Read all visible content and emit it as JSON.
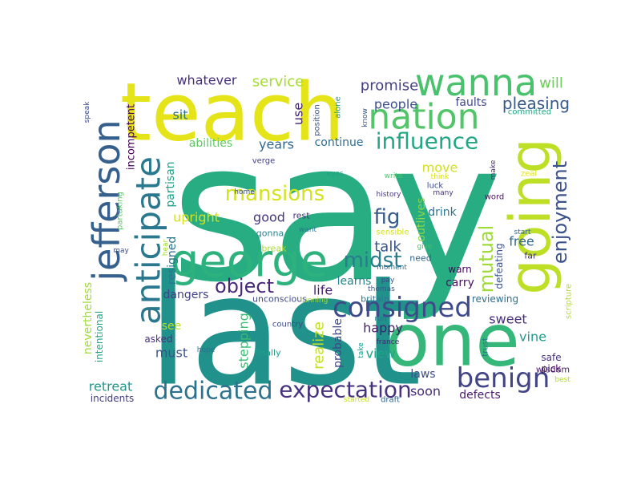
{
  "words": [
    {
      "text": "say",
      "color": "#27ad81"
    },
    {
      "text": "last",
      "color": "#21918c"
    },
    {
      "text": "teach",
      "color": "#e5e419"
    },
    {
      "text": "one",
      "color": "#35b779"
    },
    {
      "text": "going",
      "color": "#bddf26"
    },
    {
      "text": "george",
      "color": "#2db27d"
    },
    {
      "text": "jefferson",
      "color": "#355f8d"
    },
    {
      "text": "anticipate",
      "color": "#2a788e"
    },
    {
      "text": "wanna",
      "color": "#4ac16d"
    },
    {
      "text": "nation",
      "color": "#52c569"
    },
    {
      "text": "consigned",
      "color": "#3e4a89"
    },
    {
      "text": "benign",
      "color": "#414487"
    },
    {
      "text": "expectation",
      "color": "#46327e"
    },
    {
      "text": "dedicated",
      "color": "#2c728e"
    },
    {
      "text": "influence",
      "color": "#22a785"
    },
    {
      "text": "enjoyment",
      "color": "#3b528b"
    },
    {
      "text": "mansions",
      "color": "#d2e21b"
    },
    {
      "text": "midst",
      "color": "#287c8e"
    },
    {
      "text": "object",
      "color": "#482878"
    },
    {
      "text": "fig",
      "color": "#365c8d"
    },
    {
      "text": "mutual",
      "color": "#a0da39"
    },
    {
      "text": "pleasing",
      "color": "#38598c"
    },
    {
      "text": "promise",
      "color": "#433e85"
    },
    {
      "text": "service",
      "color": "#a5db36"
    },
    {
      "text": "whatever",
      "color": "#46307e"
    },
    {
      "text": "will",
      "color": "#6ccd5a"
    },
    {
      "text": "use",
      "color": "#482173"
    },
    {
      "text": "sit",
      "color": "#2d718e"
    },
    {
      "text": "years",
      "color": "#32648e"
    },
    {
      "text": "continue",
      "color": "#2e6d8e"
    },
    {
      "text": "faults",
      "color": "#3f4788"
    },
    {
      "text": "people",
      "color": "#3c4f8a"
    },
    {
      "text": "abilities",
      "color": "#5ec962"
    },
    {
      "text": "move",
      "color": "#d0e11c"
    },
    {
      "text": "upright",
      "color": "#d8e219"
    },
    {
      "text": "good",
      "color": "#453781"
    },
    {
      "text": "talk",
      "color": "#3a548c"
    },
    {
      "text": "free",
      "color": "#31688e"
    },
    {
      "text": "happy",
      "color": "#481c6e"
    },
    {
      "text": "view",
      "color": "#20a486"
    },
    {
      "text": "life",
      "color": "#481f70"
    },
    {
      "text": "realize",
      "color": "#c2df23"
    },
    {
      "text": "learns",
      "color": "#25848e"
    },
    {
      "text": "carry",
      "color": "#471164"
    },
    {
      "text": "sweet",
      "color": "#472d7b"
    },
    {
      "text": "vine",
      "color": "#1e9c89"
    },
    {
      "text": "laws",
      "color": "#3d4e8a"
    },
    {
      "text": "soon",
      "color": "#472e7c"
    },
    {
      "text": "defects",
      "color": "#481b6d"
    },
    {
      "text": "must",
      "color": "#3b518b"
    },
    {
      "text": "retreat",
      "color": "#1f978b"
    },
    {
      "text": "see",
      "color": "#b8de29"
    },
    {
      "text": "stepping",
      "color": "#3dbc74"
    },
    {
      "text": "dangers",
      "color": "#414287"
    },
    {
      "text": "drink",
      "color": "#2a768e"
    },
    {
      "text": "outlives",
      "color": "#8bd646"
    },
    {
      "text": "probable",
      "color": "#3f4889"
    },
    {
      "text": "warn",
      "color": "#46085c"
    },
    {
      "text": "defeating",
      "color": "#3b528b"
    },
    {
      "text": "reviewing",
      "color": "#2e6f8e"
    },
    {
      "text": "incompetent",
      "color": "#440154"
    },
    {
      "text": "partisan",
      "color": "#1fa088"
    },
    {
      "text": "resigned",
      "color": "#2b748e"
    },
    {
      "text": "nevertheless",
      "color": "#9fda3a"
    },
    {
      "text": "intentional",
      "color": "#21a685"
    },
    {
      "text": "incidents",
      "color": "#433e85"
    },
    {
      "text": "asked",
      "color": "#46317e"
    },
    {
      "text": "unconscious",
      "color": "#3e4a89"
    },
    {
      "text": "finally",
      "color": "#1f9e89"
    },
    {
      "text": "country",
      "color": "#3e4989"
    },
    {
      "text": "hope",
      "color": "#2d708e"
    },
    {
      "text": "gonna",
      "color": "#26828e"
    },
    {
      "text": "rest",
      "color": "#472f7d"
    },
    {
      "text": "want",
      "color": "#2a778e"
    },
    {
      "text": "break",
      "color": "#a8db34"
    },
    {
      "text": "verge",
      "color": "#424086"
    },
    {
      "text": "home",
      "color": "#3c4f8a"
    },
    {
      "text": "position",
      "color": "#3b528b"
    },
    {
      "text": "alone",
      "color": "#1f988b"
    },
    {
      "text": "know",
      "color": "#39558c"
    },
    {
      "text": "committed",
      "color": "#21a585"
    },
    {
      "text": "zeal",
      "color": "#e5e419"
    },
    {
      "text": "eyes",
      "color": "#1fa187"
    },
    {
      "text": "write",
      "color": "#4ec36b"
    },
    {
      "text": "think",
      "color": "#d8e219"
    },
    {
      "text": "make",
      "color": "#472c7a"
    },
    {
      "text": "luck",
      "color": "#3e4c8a"
    },
    {
      "text": "history",
      "color": "#443a83"
    },
    {
      "text": "many",
      "color": "#46337f"
    },
    {
      "text": "word",
      "color": "#471063"
    },
    {
      "text": "start",
      "color": "#31688e"
    },
    {
      "text": "sensible",
      "color": "#d5e21a"
    },
    {
      "text": "need",
      "color": "#33638d"
    },
    {
      "text": "give",
      "color": "#44bf70"
    },
    {
      "text": "far",
      "color": "#472e7c"
    },
    {
      "text": "moment",
      "color": "#2d718e"
    },
    {
      "text": "pay",
      "color": "#3f4788"
    },
    {
      "text": "running",
      "color": "#a2da37"
    },
    {
      "text": "thomas",
      "color": "#39568c"
    },
    {
      "text": "britain",
      "color": "#2a768e"
    },
    {
      "text": "scripture",
      "color": "#b0dd2f"
    },
    {
      "text": "run",
      "color": "#2e6f8e"
    },
    {
      "text": "france",
      "color": "#482374"
    },
    {
      "text": "take",
      "color": "#1f9a8a"
    },
    {
      "text": "trust",
      "color": "#2d718e"
    },
    {
      "text": "safe",
      "color": "#46327e"
    },
    {
      "text": "pick",
      "color": "#440154"
    },
    {
      "text": "wisdom",
      "color": "#481c6e"
    },
    {
      "text": "best",
      "color": "#b5de2b"
    },
    {
      "text": "started",
      "color": "#c8e020"
    },
    {
      "text": "draft",
      "color": "#32658e"
    },
    {
      "text": "speak",
      "color": "#3e4a89"
    },
    {
      "text": "hear",
      "color": "#a5db36"
    },
    {
      "text": "may",
      "color": "#3e4c8a"
    },
    {
      "text": "partaking",
      "color": "#5cc863"
    }
  ]
}
